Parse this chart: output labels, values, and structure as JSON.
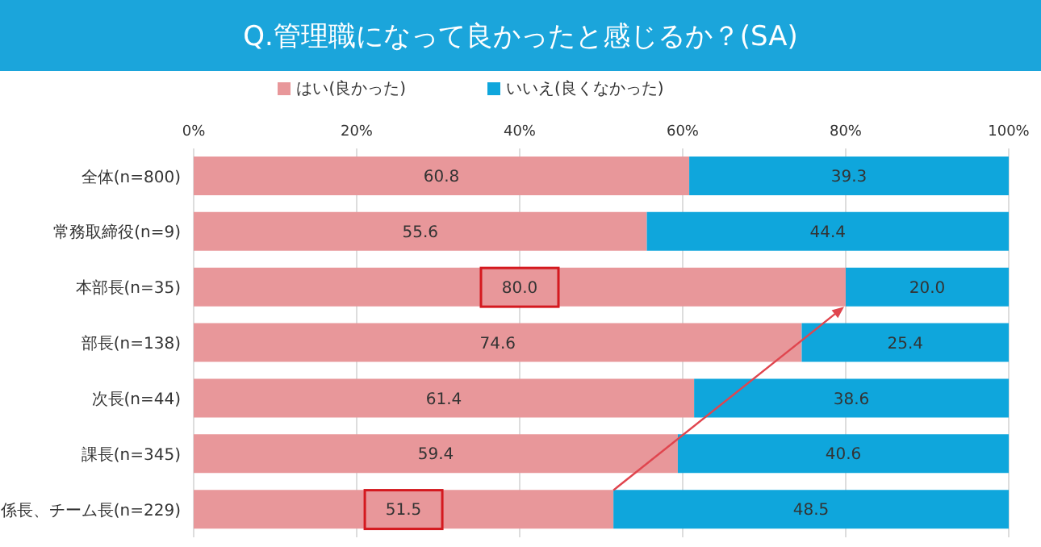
{
  "chart_data": {
    "type": "bar",
    "orientation": "horizontal",
    "stacked": true,
    "title": "Q.管理職になって良かったと感じるか？(SA)",
    "categories": [
      "全体(n=800)",
      "常務取締役(n=9)",
      "本部長(n=35)",
      "部長(n=138)",
      "次長(n=44)",
      "課長(n=345)",
      "係長、チーム長(n=229)"
    ],
    "series": [
      {
        "name": "はい(良かった)",
        "color": "#e8979a",
        "values": [
          60.8,
          55.6,
          80.0,
          74.6,
          61.4,
          59.4,
          51.5
        ],
        "value_labels": [
          "60.8",
          "55.6",
          "80.0",
          "74.6",
          "61.4",
          "59.4",
          "51.5"
        ]
      },
      {
        "name": "いいえ(良くなかった)",
        "color": "#0fa6dc",
        "values": [
          39.3,
          44.4,
          20.0,
          25.4,
          38.6,
          40.6,
          48.5
        ],
        "value_labels": [
          "39.3",
          "44.4",
          "20.0",
          "25.4",
          "38.6",
          "40.6",
          "48.5"
        ]
      }
    ],
    "xlim": [
      0,
      100
    ],
    "xticks": [
      {
        "value": 0,
        "label": "0%"
      },
      {
        "value": 20,
        "label": "20%"
      },
      {
        "value": 40,
        "label": "40%"
      },
      {
        "value": 60,
        "label": "60%"
      },
      {
        "value": 80,
        "label": "80%"
      },
      {
        "value": 100,
        "label": "100%"
      }
    ],
    "grid": "x",
    "legend": "top"
  }
}
